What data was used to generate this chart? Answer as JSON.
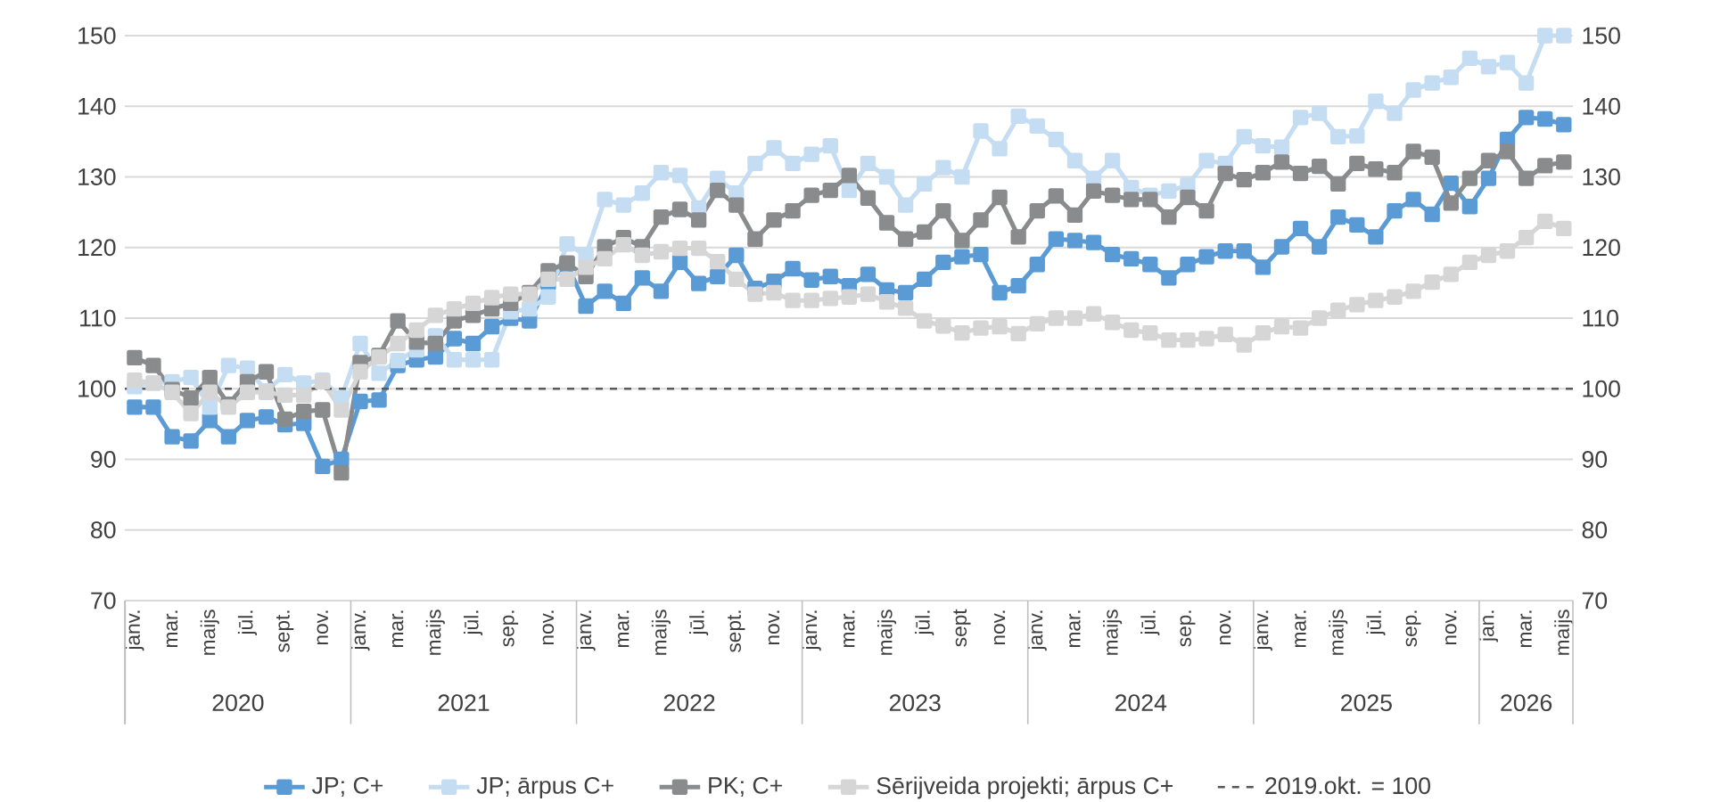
{
  "chart_data": {
    "type": "line",
    "x": [
      "2020-01",
      "2020-02",
      "2020-03",
      "2020-04",
      "2020-05",
      "2020-06",
      "2020-07",
      "2020-08",
      "2020-09",
      "2020-10",
      "2020-11",
      "2020-12",
      "2021-01",
      "2021-02",
      "2021-03",
      "2021-04",
      "2021-05",
      "2021-06",
      "2021-07",
      "2021-08",
      "2021-09",
      "2021-10",
      "2021-11",
      "2021-12",
      "2022-01",
      "2022-02",
      "2022-03",
      "2022-04",
      "2022-05",
      "2022-06",
      "2022-07",
      "2022-08",
      "2022-09",
      "2022-10",
      "2022-11",
      "2022-12",
      "2023-01",
      "2023-02",
      "2023-03",
      "2023-04",
      "2023-05",
      "2023-06",
      "2023-07",
      "2023-08",
      "2023-09",
      "2023-10",
      "2023-11",
      "2023-12",
      "2024-01",
      "2024-02",
      "2024-03",
      "2024-04",
      "2024-05",
      "2024-06",
      "2024-07",
      "2024-08",
      "2024-09",
      "2024-10",
      "2024-11",
      "2024-12",
      "2025-01",
      "2025-02",
      "2025-03",
      "2025-04",
      "2025-05",
      "2025-06",
      "2025-07",
      "2025-08",
      "2025-09",
      "2025-10",
      "2025-11",
      "2025-12",
      "2026-01",
      "2026-02",
      "2026-03",
      "2026-04",
      "2026-05"
    ],
    "series": [
      {
        "name": "JP; C+",
        "color": "#5b9bd5",
        "values": [
          97.4,
          97.4,
          93.2,
          92.6,
          95.5,
          93.2,
          95.5,
          96.0,
          94.9,
          95.1,
          89.0,
          90.0,
          98.2,
          98.4,
          103.3,
          104.1,
          104.5,
          107.1,
          106.4,
          108.8,
          110.0,
          109.6,
          115.0,
          117.7,
          111.7,
          113.8,
          112.1,
          115.7,
          113.8,
          117.9,
          114.9,
          115.9,
          118.9,
          114.2,
          115.2,
          117.0,
          115.4,
          115.9,
          114.6,
          116.2,
          114.0,
          113.6,
          115.5,
          117.9,
          118.7,
          119.0,
          113.6,
          114.6,
          117.6,
          121.2,
          121.0,
          120.7,
          119.0,
          118.4,
          117.6,
          115.7,
          117.6,
          118.7,
          119.5,
          119.5,
          117.2,
          120.1,
          122.7,
          120.1,
          124.3,
          123.2,
          121.5,
          125.2,
          126.8,
          124.7,
          129.1,
          125.8,
          129.8,
          135.3,
          138.4,
          138.2,
          137.4
        ]
      },
      {
        "name": "JP; ārpus C+",
        "color": "#c5ddf2",
        "values": [
          100.3,
          100.8,
          101.0,
          101.6,
          97.4,
          103.3,
          102.9,
          99.7,
          102.0,
          100.8,
          101.2,
          98.7,
          106.4,
          102.2,
          104.0,
          105.5,
          107.5,
          104.1,
          104.1,
          104.1,
          110.9,
          111.3,
          113.0,
          120.5,
          118.9,
          126.8,
          126.0,
          127.7,
          130.6,
          130.2,
          125.6,
          129.8,
          127.7,
          131.9,
          134.1,
          131.9,
          133.2,
          134.4,
          128.1,
          131.9,
          130.0,
          126.0,
          129.0,
          131.3,
          130.0,
          136.5,
          134.0,
          138.6,
          137.2,
          135.3,
          132.3,
          129.8,
          132.3,
          128.5,
          127.4,
          128.0,
          128.8,
          132.3,
          131.9,
          135.7,
          134.4,
          134.2,
          138.4,
          139.0,
          135.7,
          135.8,
          140.7,
          139.0,
          142.3,
          143.3,
          144.1,
          146.8,
          145.6,
          146.2,
          143.3,
          150.0,
          150.0
        ]
      },
      {
        "name": "PK; C+",
        "color": "#898b8c",
        "values": [
          104.4,
          103.3,
          99.9,
          98.7,
          101.6,
          97.8,
          101.0,
          102.4,
          95.7,
          96.8,
          97.0,
          88.1,
          103.7,
          104.7,
          109.6,
          106.6,
          106.4,
          109.6,
          110.4,
          111.3,
          112.1,
          113.6,
          116.7,
          117.8,
          115.9,
          120.1,
          121.4,
          120.1,
          124.3,
          125.4,
          123.9,
          128.1,
          126.0,
          121.2,
          123.9,
          125.2,
          127.4,
          128.1,
          130.2,
          127.0,
          123.5,
          121.2,
          122.2,
          125.2,
          121.0,
          123.9,
          127.1,
          121.5,
          125.2,
          127.3,
          124.6,
          128.0,
          127.4,
          126.8,
          126.8,
          124.3,
          127.1,
          125.2,
          130.5,
          129.6,
          130.6,
          132.1,
          130.5,
          131.5,
          129.0,
          131.9,
          131.1,
          130.6,
          133.6,
          132.8,
          126.3,
          129.8,
          132.3,
          133.6,
          129.8,
          131.6,
          132.1
        ]
      },
      {
        "name": "Sērijveida projekti; ārpus C+",
        "color": "#d6d6d6",
        "values": [
          101.2,
          100.8,
          99.5,
          96.5,
          99.5,
          97.4,
          99.5,
          99.5,
          99.1,
          99.1,
          101.0,
          97.0,
          102.4,
          104.5,
          106.4,
          108.3,
          110.4,
          111.3,
          112.1,
          112.9,
          113.4,
          113.4,
          115.5,
          115.5,
          117.2,
          118.4,
          120.4,
          118.9,
          119.4,
          119.9,
          119.9,
          118.0,
          115.5,
          113.4,
          113.6,
          112.5,
          112.5,
          112.8,
          113.0,
          113.4,
          112.3,
          111.4,
          109.6,
          108.9,
          107.9,
          108.6,
          108.8,
          107.8,
          109.2,
          110.0,
          110.0,
          110.6,
          109.4,
          108.3,
          107.9,
          106.9,
          106.9,
          107.1,
          107.7,
          106.2,
          107.9,
          108.8,
          108.6,
          110.0,
          111.1,
          111.9,
          112.5,
          113.0,
          113.8,
          115.1,
          116.2,
          117.9,
          118.9,
          119.5,
          121.4,
          123.7,
          122.7
        ]
      }
    ],
    "xlim": [
      "2019-12-16",
      "2026-05-16"
    ],
    "xticks": [
      {
        "value": "2020-01",
        "label": "janv."
      },
      {
        "value": "2020-03",
        "label": "mar."
      },
      {
        "value": "2020-05",
        "label": "maijs"
      },
      {
        "value": "2020-07",
        "label": "jūl."
      },
      {
        "value": "2020-09",
        "label": "sept."
      },
      {
        "value": "2020-11",
        "label": "nov."
      },
      {
        "value": "2021-01",
        "label": "janv."
      },
      {
        "value": "2021-03",
        "label": "mar."
      },
      {
        "value": "2021-05",
        "label": "maijs"
      },
      {
        "value": "2021-07",
        "label": "jūl."
      },
      {
        "value": "2021-09",
        "label": "sep."
      },
      {
        "value": "2021-11",
        "label": "nov."
      },
      {
        "value": "2022-01",
        "label": "janv."
      },
      {
        "value": "2022-03",
        "label": "mar."
      },
      {
        "value": "2022-05",
        "label": "maijs"
      },
      {
        "value": "2022-07",
        "label": "jūl."
      },
      {
        "value": "2022-09",
        "label": "sept."
      },
      {
        "value": "2022-11",
        "label": "nov."
      },
      {
        "value": "2023-01",
        "label": "janv."
      },
      {
        "value": "2023-03",
        "label": "mar."
      },
      {
        "value": "2023-05",
        "label": "maijs"
      },
      {
        "value": "2023-07",
        "label": "jūl."
      },
      {
        "value": "2023-09",
        "label": "sept"
      },
      {
        "value": "2023-11",
        "label": "nov."
      },
      {
        "value": "2024-01",
        "label": "janv."
      },
      {
        "value": "2024-03",
        "label": "mar."
      },
      {
        "value": "2024-05",
        "label": "maijs"
      },
      {
        "value": "2024-07",
        "label": "jūl."
      },
      {
        "value": "2024-09",
        "label": "sep."
      },
      {
        "value": "2024-11",
        "label": "nov."
      },
      {
        "value": "2025-01",
        "label": "janv."
      },
      {
        "value": "2025-03",
        "label": "mar."
      },
      {
        "value": "2025-05",
        "label": "maijs"
      },
      {
        "value": "2025-07",
        "label": "jūl."
      },
      {
        "value": "2025-09",
        "label": "sep."
      },
      {
        "value": "2025-11",
        "label": "nov."
      },
      {
        "value": "2026-01",
        "label": "jan."
      },
      {
        "value": "2026-03",
        "label": "mar."
      },
      {
        "value": "2026-05",
        "label": "maijs"
      }
    ],
    "ylim": [
      70,
      150
    ],
    "yticks": [
      70,
      80,
      90,
      100,
      110,
      120,
      130,
      140,
      150
    ],
    "y2lim": [
      70,
      150
    ],
    "y2ticks": [
      70,
      80,
      90,
      100,
      110,
      120,
      130,
      140,
      150
    ],
    "ref_lines": [
      {
        "axis": "y",
        "value": 100,
        "label": "2019.okt. = 100",
        "color": "#595959",
        "line_style": "dashed"
      }
    ],
    "annotations": [
      "2020",
      "2021",
      "2022",
      "2023",
      "2024",
      "2025",
      "2026"
    ],
    "grid": "y",
    "legend": "bottom",
    "marker": "square",
    "line_style": "solid"
  }
}
